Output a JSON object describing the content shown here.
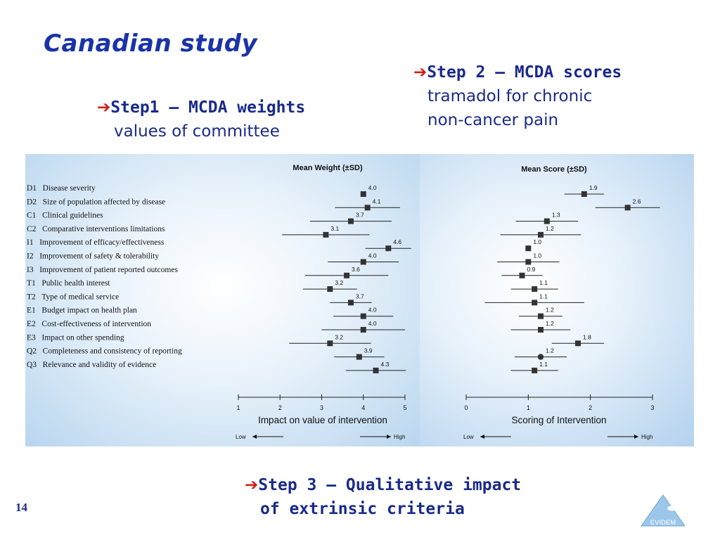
{
  "slide": {
    "title": "Canadian study",
    "page_number": "14",
    "logo_text": "EVIDEM"
  },
  "steps": {
    "step1": {
      "arrow": "➔",
      "heading": "Step1 – MCDA weights",
      "sub": "values of committee"
    },
    "step2": {
      "arrow": "➔",
      "heading": "Step 2 – MCDA scores",
      "sub1": "tramadol for chronic",
      "sub2": "non-cancer pain"
    },
    "step3": {
      "arrow": "➔",
      "line1": "Step 3 – Qualitative impact",
      "line2": "of extrinsic criteria"
    }
  },
  "chart_data": [
    {
      "type": "scatter",
      "title": "Mean Weight (±SD)",
      "xlabel": "Impact on value of intervention",
      "x_low_label": "Low",
      "x_high_label": "High",
      "xlim": [
        1,
        5
      ],
      "xticks": [
        1,
        2,
        3,
        4,
        5
      ],
      "categories": [
        "D1   Disease severity",
        "D2   Size of population affected by disease",
        "C1   Clinical guidelines",
        "C2   Comparative interventions limitations",
        "I1   Improvement of efficacy/effectiveness",
        "I2   Improvement of safety & tolerability",
        "I3   Improvement of patient reported outcomes",
        "T1   Public health interest",
        "T2   Type of medical service",
        "E1   Budget impact on health plan",
        "E2   Cost-effectiveness of intervention",
        "E3   Impact on other spending",
        "Q2   Completeness and consistency of reporting",
        "Q3   Relevance and validity of evidence"
      ],
      "values": [
        4.0,
        4.1,
        3.7,
        3.1,
        4.6,
        4.0,
        3.6,
        3.2,
        3.7,
        4.0,
        4.0,
        3.2,
        3.9,
        4.3
      ],
      "value_labels": [
        "4.0",
        "4.1",
        "3.7",
        "3.1",
        "4.6",
        "4.0",
        "3.6",
        "3.2",
        "3.7",
        "4.0",
        "4.0",
        "3.2",
        "3.9",
        "4.3"
      ],
      "sd": [
        0,
        0.78,
        0.98,
        1.05,
        0.55,
        0.85,
        1.0,
        0.65,
        0.5,
        0.72,
        1.0,
        0.98,
        0.6,
        0.72
      ]
    },
    {
      "type": "scatter",
      "title": "Mean Score (±SD)",
      "xlabel": "Scoring of Intervention",
      "x_low_label": "Low",
      "x_high_label": "High",
      "xlim": [
        0,
        3
      ],
      "xticks": [
        0,
        1,
        2,
        3
      ],
      "values": [
        1.9,
        2.6,
        1.3,
        1.2,
        1.0,
        1.0,
        0.9,
        1.1,
        1.1,
        1.2,
        1.2,
        1.8,
        1.2,
        1.1
      ],
      "value_labels": [
        "1.9",
        "2.6",
        "1.3",
        "1.2",
        "1.0",
        "1.0",
        "0.9",
        "1.1",
        "1.1",
        "1.2",
        "1.2",
        "1.8",
        "1.2",
        "1.1"
      ],
      "sd": [
        0.32,
        0.52,
        0.5,
        0.65,
        0,
        0.5,
        0.33,
        0.38,
        0.8,
        0.35,
        0.48,
        0.42,
        0.42,
        0.38
      ],
      "markers": [
        "square",
        "square",
        "square",
        "square",
        "square",
        "square",
        "square",
        "square",
        "square",
        "square",
        "square",
        "square",
        "circle",
        "square"
      ]
    }
  ]
}
